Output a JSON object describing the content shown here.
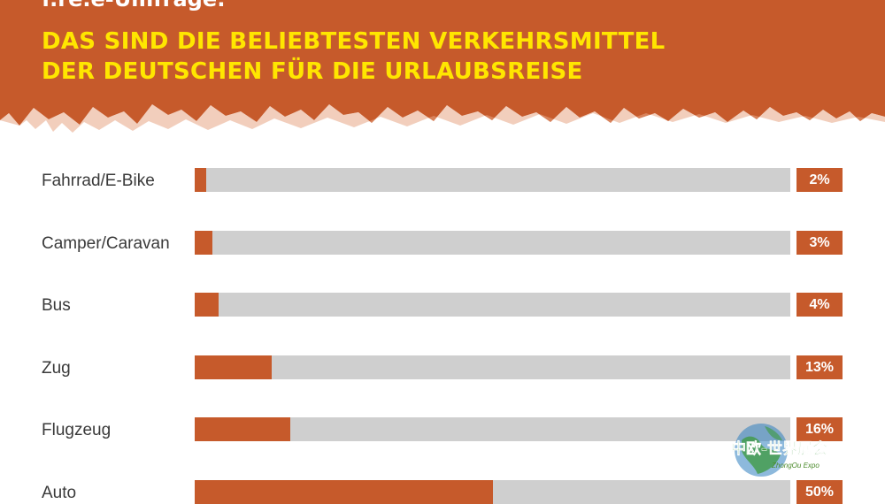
{
  "header": {
    "kicker": "f.re.e-Umfrage:",
    "title_line1": "DAS SIND DIE BELIEBTESTEN VERKEHRSMITTEL",
    "title_line2": "DER DEUTSCHEN FÜR DIE URLAUBSREISE"
  },
  "colors": {
    "header_bg": "#c65a2b",
    "title": "#ffe600",
    "bar_fill": "#c65a2b",
    "bar_track": "#cfcfcf",
    "logo_green": "#3c9a3c",
    "logo_blue": "#2f7fc0"
  },
  "watermark": {
    "text": "中欧-世界展会",
    "subtext": "ZhongOu Expo",
    "icon": "globe-icon"
  },
  "chart_data": {
    "type": "bar",
    "orientation": "horizontal",
    "categories": [
      "Fahrrad/E-Bike",
      "Camper/Caravan",
      "Bus",
      "Zug",
      "Flugzeug",
      "Auto"
    ],
    "values": [
      2,
      3,
      4,
      13,
      16,
      50
    ],
    "value_labels": [
      "2%",
      "3%",
      "4%",
      "13%",
      "16%",
      "50%"
    ],
    "title": "DAS SIND DIE BELIEBTESTEN VERKEHRSMITTEL DER DEUTSCHEN FÜR DIE URLAUBSREISE",
    "xlim": [
      0,
      100
    ],
    "unit": "%"
  }
}
